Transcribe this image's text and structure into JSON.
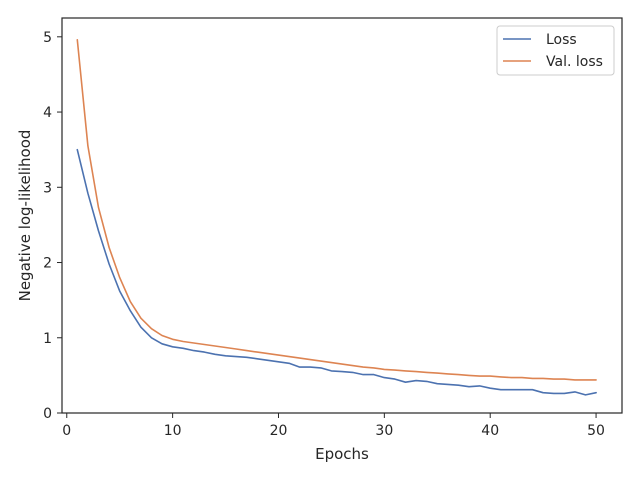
{
  "chart_data": {
    "type": "line",
    "title": "",
    "xlabel": "Epochs",
    "ylabel": "Negative log-likelihood",
    "xlim": [
      -0.45,
      52.45
    ],
    "ylim": [
      0,
      5.25
    ],
    "xticks": [
      0,
      10,
      20,
      30,
      40,
      50
    ],
    "yticks": [
      0,
      1,
      2,
      3,
      4,
      5
    ],
    "grid": false,
    "legend_position": "top-right",
    "x": [
      1,
      2,
      3,
      4,
      5,
      6,
      7,
      8,
      9,
      10,
      11,
      12,
      13,
      14,
      15,
      16,
      17,
      18,
      19,
      20,
      21,
      22,
      23,
      24,
      25,
      26,
      27,
      28,
      29,
      30,
      31,
      32,
      33,
      34,
      35,
      36,
      37,
      38,
      39,
      40,
      41,
      42,
      43,
      44,
      45,
      46,
      47,
      48,
      49,
      50
    ],
    "series": [
      {
        "name": "Loss",
        "color": "#4c72b0",
        "values": [
          3.5,
          2.92,
          2.42,
          1.98,
          1.62,
          1.36,
          1.14,
          1.0,
          0.92,
          0.88,
          0.86,
          0.83,
          0.81,
          0.78,
          0.76,
          0.75,
          0.74,
          0.72,
          0.7,
          0.68,
          0.66,
          0.61,
          0.61,
          0.6,
          0.56,
          0.55,
          0.54,
          0.51,
          0.51,
          0.47,
          0.45,
          0.41,
          0.43,
          0.42,
          0.39,
          0.38,
          0.37,
          0.35,
          0.36,
          0.33,
          0.31,
          0.31,
          0.31,
          0.31,
          0.27,
          0.26,
          0.26,
          0.28,
          0.24,
          0.27
        ]
      },
      {
        "name": "Val. loss",
        "color": "#dd8452",
        "values": [
          4.96,
          3.55,
          2.73,
          2.2,
          1.8,
          1.48,
          1.26,
          1.12,
          1.03,
          0.98,
          0.95,
          0.93,
          0.91,
          0.89,
          0.87,
          0.85,
          0.83,
          0.81,
          0.79,
          0.77,
          0.75,
          0.73,
          0.71,
          0.69,
          0.67,
          0.65,
          0.63,
          0.61,
          0.6,
          0.58,
          0.57,
          0.56,
          0.55,
          0.54,
          0.53,
          0.52,
          0.51,
          0.5,
          0.49,
          0.49,
          0.48,
          0.47,
          0.47,
          0.46,
          0.46,
          0.45,
          0.45,
          0.44,
          0.44,
          0.44
        ]
      }
    ]
  }
}
